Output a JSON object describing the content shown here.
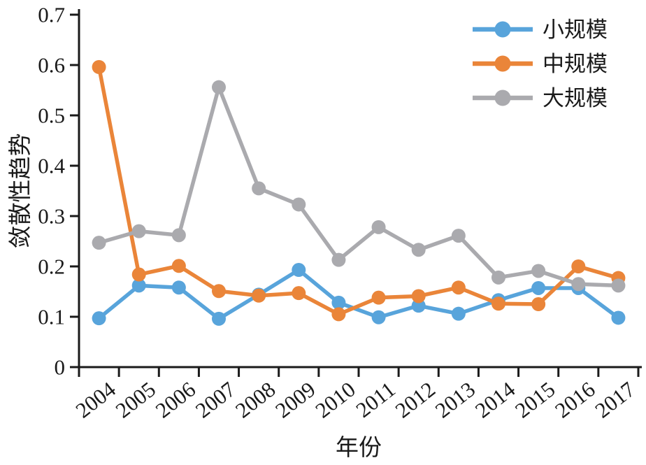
{
  "chart_data": {
    "type": "line",
    "title": "",
    "xlabel": "年份",
    "ylabel": "敛散性趋势",
    "x_tick_labels": [
      "2004",
      "2005",
      "2006",
      "2007",
      "2008",
      "2009",
      "2010",
      "2011",
      "2012",
      "2013",
      "2014",
      "2015",
      "2016",
      "2017"
    ],
    "y_tick_labels": [
      "0",
      "0.1",
      "0.2",
      "0.3",
      "0.4",
      "0.5",
      "0.6",
      "0.7"
    ],
    "ylim": [
      0,
      0.7
    ],
    "grid": false,
    "legend_position": "top-right",
    "axis_color": "#1a1a1a",
    "series": [
      {
        "name": "小规模",
        "key": "small-scale",
        "color": "#58A4DB",
        "values": [
          0.097,
          0.162,
          0.158,
          0.096,
          0.144,
          0.193,
          0.128,
          0.099,
          0.122,
          0.106,
          0.133,
          0.157,
          0.157,
          0.098
        ]
      },
      {
        "name": "中规模",
        "key": "medium-scale",
        "color": "#EA8539",
        "values": [
          0.596,
          0.184,
          0.201,
          0.151,
          0.142,
          0.147,
          0.105,
          0.138,
          0.141,
          0.158,
          0.126,
          0.125,
          0.2,
          0.177
        ]
      },
      {
        "name": "大规模",
        "key": "large-scale",
        "color": "#AAAAAE",
        "values": [
          0.247,
          0.27,
          0.262,
          0.556,
          0.355,
          0.323,
          0.213,
          0.278,
          0.233,
          0.261,
          0.178,
          0.191,
          0.165,
          0.162
        ]
      }
    ]
  }
}
